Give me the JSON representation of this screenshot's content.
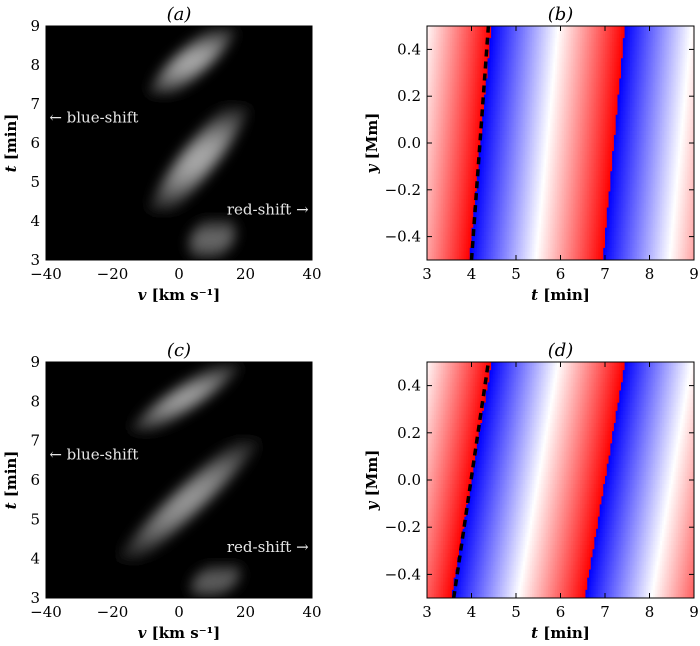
{
  "chart_data": [
    {
      "panel": "(a)",
      "type": "heatmap",
      "title": "(a)",
      "xlabel_var": "v",
      "xlabel_unit": "[km s⁻¹]",
      "ylabel_var": "t",
      "ylabel_unit": "[min]",
      "xlim": [
        -40,
        40
      ],
      "ylim": [
        3,
        9
      ],
      "xticks": [
        "−40",
        "−20",
        "0",
        "20",
        "40"
      ],
      "yticks": [
        "3",
        "4",
        "5",
        "6",
        "7",
        "8",
        "9"
      ],
      "colormap": "grayscale (black background, white intensity)",
      "annotations": [
        {
          "text": "← blue-shift",
          "x": -39,
          "y": 6.65
        },
        {
          "text": "red-shift →",
          "x": 39,
          "y": 4.3
        }
      ],
      "features": [
        {
          "t_range": [
            3,
            4.1
          ],
          "v_center_start": 8,
          "v_center_end": 12,
          "peak": 0.45
        },
        {
          "t_range": [
            4.2,
            7.0
          ],
          "v_center_start": -6,
          "v_center_end": 18,
          "peak": 1.0
        },
        {
          "t_range": [
            7.2,
            9
          ],
          "v_center_start": -6,
          "v_center_end": 14,
          "peak": 0.8
        }
      ]
    },
    {
      "panel": "(b)",
      "type": "heatmap",
      "title": "(b)",
      "xlabel_var": "t",
      "xlabel_unit": "[min]",
      "ylabel_var": "y",
      "ylabel_unit": "[Mm]",
      "xlim": [
        3,
        9
      ],
      "ylim": [
        -0.5,
        0.5
      ],
      "xticks": [
        "3",
        "4",
        "5",
        "6",
        "7",
        "8",
        "9"
      ],
      "yticks": [
        "−0.4",
        "−0.2",
        "0.0",
        "0.2",
        "0.4"
      ],
      "colormap": "red-white-blue diverging",
      "period_min": 3.0,
      "fronts_at_bottom": [
        3.95,
        6.95
      ],
      "fronts_at_top": [
        4.45,
        7.5
      ],
      "dashed_line": {
        "t": [
          4.0,
          4.38
        ],
        "y": [
          -0.5,
          0.5
        ]
      }
    },
    {
      "panel": "(c)",
      "type": "heatmap",
      "title": "(c)",
      "xlabel_var": "v",
      "xlabel_unit": "[km s⁻¹]",
      "ylabel_var": "t",
      "ylabel_unit": "[min]",
      "xlim": [
        -40,
        40
      ],
      "ylim": [
        3,
        9
      ],
      "xticks": [
        "−40",
        "−20",
        "0",
        "20",
        "40"
      ],
      "yticks": [
        "3",
        "4",
        "5",
        "6",
        "7",
        "8",
        "9"
      ],
      "colormap": "grayscale (black background, white intensity)",
      "annotations": [
        {
          "text": "← blue-shift",
          "x": -39,
          "y": 6.65
        },
        {
          "text": "red-shift →",
          "x": 39,
          "y": 4.3
        }
      ],
      "features": [
        {
          "t_range": [
            3,
            3.9
          ],
          "v_center_start": 8,
          "v_center_end": 14,
          "peak": 0.4
        },
        {
          "t_range": [
            3.9,
            7.1
          ],
          "v_center_start": -16,
          "v_center_end": 22,
          "peak": 0.95
        },
        {
          "t_range": [
            7.2,
            9
          ],
          "v_center_start": -12,
          "v_center_end": 16,
          "peak": 0.75
        }
      ]
    },
    {
      "panel": "(d)",
      "type": "heatmap",
      "title": "(d)",
      "xlabel_var": "t",
      "xlabel_unit": "[min]",
      "ylabel_var": "y",
      "ylabel_unit": "[Mm]",
      "xlim": [
        3,
        9
      ],
      "ylim": [
        -0.5,
        0.5
      ],
      "xticks": [
        "3",
        "4",
        "5",
        "6",
        "7",
        "8",
        "9"
      ],
      "yticks": [
        "−0.4",
        "−0.2",
        "0.0",
        "0.2",
        "0.4"
      ],
      "colormap": "red-white-blue diverging",
      "period_min": 3.0,
      "fronts_at_bottom": [
        3.55,
        6.6
      ],
      "fronts_at_top": [
        4.45,
        7.6
      ],
      "dashed_line": {
        "t": [
          3.6,
          4.38
        ],
        "y": [
          -0.5,
          0.5
        ]
      }
    }
  ]
}
